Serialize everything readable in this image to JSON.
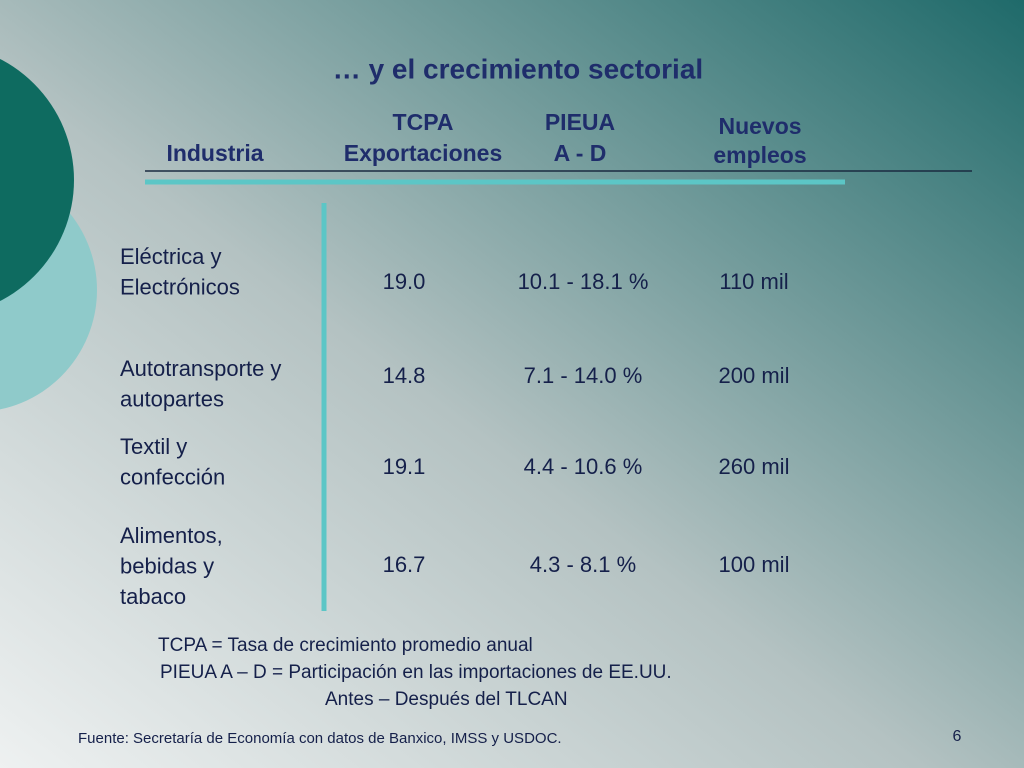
{
  "title": "… y el crecimiento sectorial",
  "table": {
    "headers": [
      [
        "Industria"
      ],
      [
        "TCPA",
        "Exportaciones"
      ],
      [
        "PIEUA",
        "A - D"
      ],
      [
        "Nuevos",
        "empleos"
      ]
    ],
    "rows": [
      [
        [
          "Eléctrica y",
          "Electrónicos"
        ],
        "19.0",
        "10.1 - 18.1 %",
        "110 mil"
      ],
      [
        [
          "Autotransporte y",
          "autopartes"
        ],
        "14.8",
        "7.1 - 14.0 %",
        "200 mil"
      ],
      [
        [
          "Textil y",
          "confección"
        ],
        "19.1",
        "4.4 - 10.6 %",
        "260 mil"
      ],
      [
        [
          "Alimentos,",
          "bebidas y",
          "tabaco"
        ],
        "16.7",
        "4.3 -  8.1 %",
        "100 mil"
      ]
    ]
  },
  "notes": [
    "TCPA = Tasa de crecimiento promedio anual",
    "PIEUA  A – D = Participación en las importaciones de EE.UU.",
    "Antes – Después del TLCAN"
  ],
  "source": "Fuente: Secretaría de Economía con datos de Banxico, IMSS y USDOC.",
  "page_number": "6"
}
